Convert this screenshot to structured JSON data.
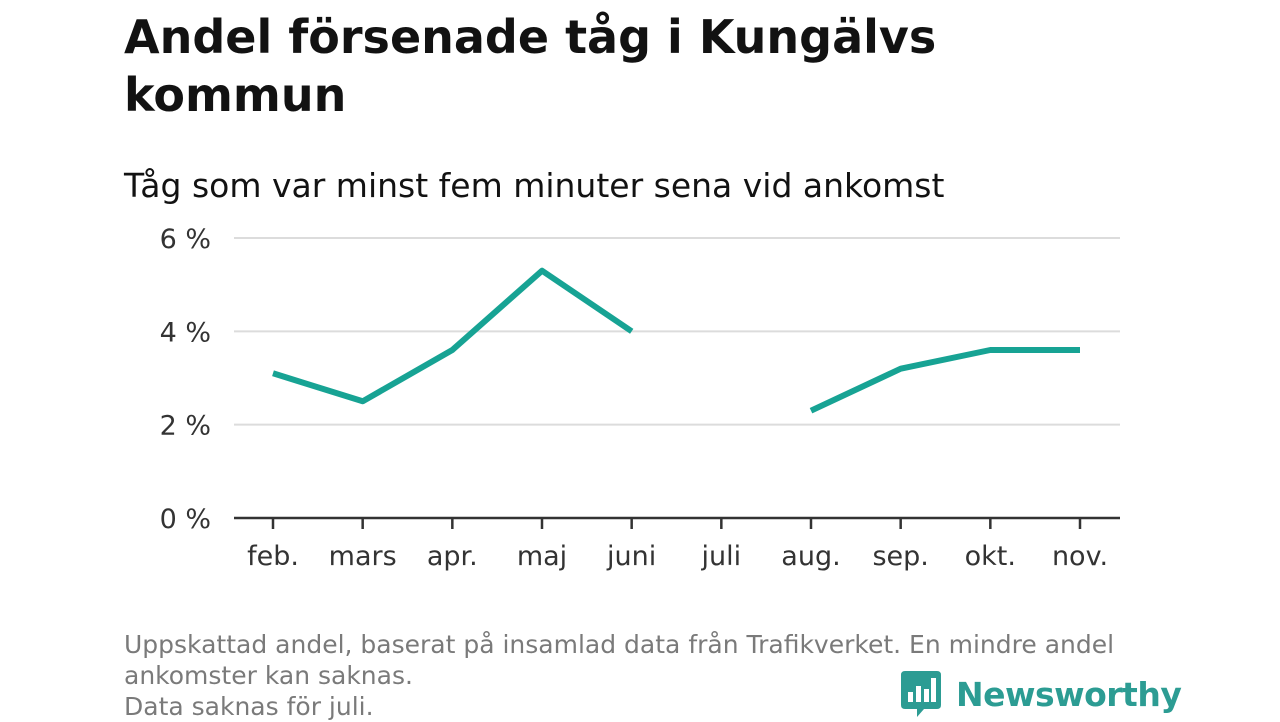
{
  "title": "Andel försenade tåg i Kungälvs kommun",
  "subtitle": "Tåg som var minst fem minuter sena vid ankomst",
  "footnote": {
    "line1": "Uppskattad andel, baserat på insamlad data från Trafikverket. En mindre andel",
    "line2": "ankomster kan saknas.",
    "line3": "Data saknas för juli."
  },
  "brand": {
    "name": "Newsworthy",
    "icon": "bar-chart-speech-bubble-icon",
    "color": "#2c9c93"
  },
  "chart_data": {
    "type": "line",
    "categories": [
      "feb.",
      "mars",
      "apr.",
      "maj",
      "juni",
      "juli",
      "aug.",
      "sep.",
      "okt.",
      "nov."
    ],
    "series": [
      {
        "values": [
          3.1,
          2.5,
          3.6,
          5.3,
          4.0,
          null,
          2.3,
          3.2,
          3.6,
          3.6
        ],
        "color": "#17a394"
      }
    ],
    "yticks": [
      0,
      2,
      4,
      6
    ],
    "ytick_labels": [
      "0 %",
      "2 %",
      "4 %",
      "6 %"
    ],
    "ylim": [
      0,
      6
    ],
    "grid": true,
    "legend": "none",
    "note": "juli: data saknas"
  }
}
